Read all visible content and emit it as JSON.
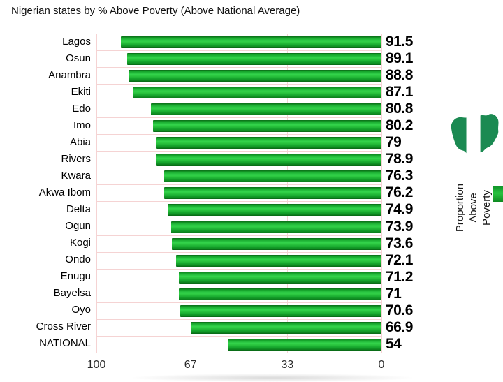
{
  "title": "Nigerian states by % Above Poverty (Above National Average)",
  "chart_data": {
    "type": "bar",
    "orientation": "horizontal",
    "anchor": "right",
    "title": "Nigerian states by % Above Poverty (Above National Average)",
    "categories": [
      "Lagos",
      "Osun",
      "Anambra",
      "Ekiti",
      "Edo",
      "Imo",
      "Abia",
      "Rivers",
      "Kwara",
      "Akwa Ibom",
      "Delta",
      "Ogun",
      "Kogi",
      "Ondo",
      "Enugu",
      "Bayelsa",
      "Oyo",
      "Cross River",
      "NATIONAL"
    ],
    "values": [
      91.5,
      89.1,
      88.8,
      87.1,
      80.8,
      80.2,
      79,
      78.9,
      76.3,
      76.2,
      74.9,
      73.9,
      73.6,
      72.1,
      71.2,
      71,
      70.6,
      66.9,
      54
    ],
    "value_labels": [
      "91.5",
      "89.1",
      "88.8",
      "87.1",
      "80.8",
      "80.2",
      "79",
      "78.9",
      "76.3",
      "76.2",
      "74.9",
      "73.9",
      "73.6",
      "72.1",
      "71.2",
      "71",
      "70.6",
      "66.9",
      "54"
    ],
    "x_axis": {
      "tick_labels": [
        "100",
        "67",
        "33",
        "0"
      ],
      "tick_values": [
        100,
        67,
        33,
        0
      ],
      "range": [
        100,
        0
      ],
      "reversed": true
    },
    "grid": true,
    "legend": {
      "label_lines": [
        "Proportion",
        "Above",
        "Poverty"
      ],
      "position": "right"
    }
  },
  "colors": {
    "bar_green_bright": "#2bc63f",
    "bar_green_dark": "#0a6b16",
    "gridline_pink": "#f5d3d3",
    "flag_green": "#1b8a52",
    "legend_swatch_green": "#18a338",
    "text_black": "#000000"
  },
  "icons": {
    "nigeria_map_flag": "map of Nigeria filled with green-white-green flag stripes"
  }
}
